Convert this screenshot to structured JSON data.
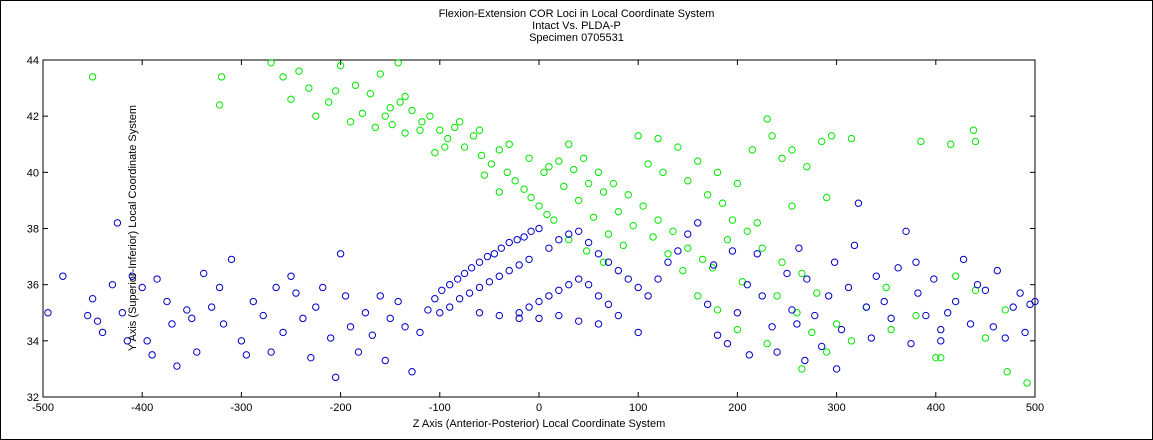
{
  "chart_data": {
    "type": "scatter",
    "title": "Flexion-Extension COR Loci in Local Coordinate System",
    "subtitle_lines": [
      "Intact Vs. PLDA-P",
      "Specimen 0705531"
    ],
    "xlabel": "Z Axis (Anterior-Posterior) Local Coordinate System",
    "ylabel": "Y Axis (Superior-Inferior) Local Coordinate System",
    "xlim": [
      -500,
      500
    ],
    "ylim": [
      32,
      44
    ],
    "xticks": [
      -500,
      -400,
      -300,
      -200,
      -100,
      0,
      100,
      200,
      300,
      400,
      500
    ],
    "yticks": [
      32,
      34,
      36,
      38,
      40,
      42,
      44
    ],
    "grid": false,
    "legend": "none",
    "marker": "open-circle",
    "series": [
      {
        "color": "#00e600",
        "values": [
          [
            -450,
            43.4
          ],
          [
            -320,
            43.4
          ],
          [
            -322,
            42.4
          ],
          [
            -270,
            43.9
          ],
          [
            -258,
            43.4
          ],
          [
            -250,
            42.6
          ],
          [
            -242,
            43.6
          ],
          [
            -232,
            43.0
          ],
          [
            -225,
            42.0
          ],
          [
            -212,
            42.5
          ],
          [
            -200,
            43.8
          ],
          [
            -185,
            43.1
          ],
          [
            -170,
            42.8
          ],
          [
            -160,
            43.5
          ],
          [
            -150,
            42.3
          ],
          [
            -142,
            43.9
          ],
          [
            -135,
            42.7
          ],
          [
            -205,
            42.9
          ],
          [
            -190,
            41.8
          ],
          [
            -178,
            42.1
          ],
          [
            -165,
            41.6
          ],
          [
            -155,
            42.0
          ],
          [
            -148,
            41.7
          ],
          [
            -140,
            42.5
          ],
          [
            -128,
            42.2
          ],
          [
            -118,
            41.8
          ],
          [
            -110,
            42.0
          ],
          [
            -100,
            41.5
          ],
          [
            -92,
            41.2
          ],
          [
            -85,
            41.6
          ],
          [
            -75,
            40.9
          ],
          [
            -66,
            41.3
          ],
          [
            -58,
            40.6
          ],
          [
            -48,
            40.3
          ],
          [
            -40,
            40.8
          ],
          [
            -32,
            40.0
          ],
          [
            -24,
            39.7
          ],
          [
            -15,
            39.4
          ],
          [
            -8,
            39.1
          ],
          [
            0,
            38.8
          ],
          [
            8,
            38.5
          ],
          [
            15,
            38.3
          ],
          [
            -80,
            41.8
          ],
          [
            -60,
            41.5
          ],
          [
            -30,
            41.0
          ],
          [
            -10,
            40.5
          ],
          [
            10,
            40.2
          ],
          [
            25,
            39.5
          ],
          [
            40,
            39.0
          ],
          [
            55,
            38.4
          ],
          [
            70,
            37.8
          ],
          [
            85,
            37.4
          ],
          [
            30,
            41.0
          ],
          [
            45,
            40.5
          ],
          [
            60,
            40.0
          ],
          [
            75,
            39.6
          ],
          [
            90,
            39.2
          ],
          [
            105,
            38.8
          ],
          [
            120,
            38.3
          ],
          [
            135,
            37.9
          ],
          [
            150,
            37.3
          ],
          [
            165,
            36.9
          ],
          [
            100,
            41.3
          ],
          [
            120,
            41.2
          ],
          [
            140,
            40.9
          ],
          [
            160,
            40.4
          ],
          [
            180,
            40.0
          ],
          [
            200,
            39.6
          ],
          [
            215,
            40.8
          ],
          [
            230,
            41.9
          ],
          [
            235,
            41.3
          ],
          [
            245,
            40.5
          ],
          [
            255,
            40.8
          ],
          [
            270,
            40.2
          ],
          [
            285,
            41.1
          ],
          [
            295,
            41.3
          ],
          [
            315,
            41.2
          ],
          [
            290,
            39.1
          ],
          [
            255,
            38.8
          ],
          [
            220,
            38.2
          ],
          [
            190,
            37.6
          ],
          [
            175,
            36.6
          ],
          [
            205,
            36.1
          ],
          [
            240,
            35.6
          ],
          [
            260,
            35.0
          ],
          [
            275,
            34.3
          ],
          [
            300,
            34.6
          ],
          [
            315,
            34.0
          ],
          [
            290,
            33.6
          ],
          [
            265,
            33.0
          ],
          [
            330,
            35.2
          ],
          [
            350,
            35.9
          ],
          [
            385,
            41.1
          ],
          [
            415,
            41.0
          ],
          [
            438,
            41.5
          ],
          [
            440,
            41.1
          ],
          [
            420,
            36.3
          ],
          [
            405,
            33.4
          ],
          [
            400,
            33.4
          ],
          [
            450,
            34.1
          ],
          [
            472,
            32.9
          ],
          [
            492,
            32.5
          ],
          [
            470,
            35.1
          ],
          [
            440,
            35.8
          ],
          [
            380,
            34.9
          ],
          [
            355,
            34.4
          ],
          [
            230,
            33.9
          ],
          [
            200,
            34.4
          ],
          [
            180,
            35.1
          ],
          [
            160,
            35.6
          ],
          [
            145,
            36.5
          ],
          [
            130,
            37.1
          ],
          [
            115,
            37.7
          ],
          [
            95,
            38.1
          ],
          [
            80,
            38.6
          ],
          [
            65,
            36.8
          ],
          [
            48,
            37.2
          ],
          [
            30,
            37.6
          ],
          [
            -40,
            39.3
          ],
          [
            -55,
            39.9
          ],
          [
            -95,
            40.9
          ],
          [
            -120,
            41.5
          ],
          [
            -135,
            41.4
          ],
          [
            -105,
            40.7
          ],
          [
            5,
            40.0
          ],
          [
            20,
            40.4
          ],
          [
            35,
            40.1
          ],
          [
            50,
            39.6
          ],
          [
            65,
            39.3
          ],
          [
            110,
            40.3
          ],
          [
            125,
            40.0
          ],
          [
            150,
            39.7
          ],
          [
            170,
            39.2
          ],
          [
            185,
            38.9
          ],
          [
            195,
            38.3
          ],
          [
            210,
            37.9
          ],
          [
            225,
            37.3
          ],
          [
            245,
            36.8
          ],
          [
            265,
            36.4
          ],
          [
            280,
            35.7
          ]
        ]
      },
      {
        "color": "#0000c8",
        "values": [
          [
            -495,
            35.0
          ],
          [
            -480,
            36.3
          ],
          [
            -455,
            34.9
          ],
          [
            -450,
            35.5
          ],
          [
            -445,
            34.7
          ],
          [
            -440,
            34.3
          ],
          [
            -430,
            36.0
          ],
          [
            -425,
            38.2
          ],
          [
            -420,
            35.0
          ],
          [
            -415,
            34.0
          ],
          [
            -410,
            36.3
          ],
          [
            -400,
            35.9
          ],
          [
            -395,
            34.0
          ],
          [
            -390,
            33.5
          ],
          [
            -385,
            36.2
          ],
          [
            -375,
            35.4
          ],
          [
            -370,
            34.6
          ],
          [
            -365,
            33.1
          ],
          [
            -355,
            35.1
          ],
          [
            -350,
            34.8
          ],
          [
            -345,
            33.6
          ],
          [
            -338,
            36.4
          ],
          [
            -330,
            35.2
          ],
          [
            -322,
            35.9
          ],
          [
            -318,
            34.6
          ],
          [
            -310,
            36.9
          ],
          [
            -300,
            34.0
          ],
          [
            -295,
            33.5
          ],
          [
            -288,
            35.4
          ],
          [
            -278,
            34.9
          ],
          [
            -270,
            33.6
          ],
          [
            -265,
            35.9
          ],
          [
            -258,
            34.3
          ],
          [
            -250,
            36.3
          ],
          [
            -245,
            35.7
          ],
          [
            -238,
            34.8
          ],
          [
            -230,
            33.4
          ],
          [
            -225,
            35.2
          ],
          [
            -218,
            35.9
          ],
          [
            -210,
            34.1
          ],
          [
            -205,
            32.7
          ],
          [
            -200,
            37.1
          ],
          [
            -195,
            35.6
          ],
          [
            -190,
            34.5
          ],
          [
            -182,
            33.6
          ],
          [
            -175,
            35.0
          ],
          [
            -168,
            34.2
          ],
          [
            -160,
            35.6
          ],
          [
            -155,
            33.3
          ],
          [
            -150,
            34.8
          ],
          [
            -142,
            35.4
          ],
          [
            -135,
            34.5
          ],
          [
            -128,
            32.9
          ],
          [
            -120,
            34.3
          ],
          [
            -112,
            35.1
          ],
          [
            -105,
            35.5
          ],
          [
            -98,
            35.8
          ],
          [
            -90,
            36.0
          ],
          [
            -82,
            36.2
          ],
          [
            -75,
            36.4
          ],
          [
            -68,
            36.6
          ],
          [
            -60,
            36.8
          ],
          [
            -52,
            37.0
          ],
          [
            -45,
            37.1
          ],
          [
            -38,
            37.3
          ],
          [
            -30,
            37.5
          ],
          [
            -22,
            37.6
          ],
          [
            -15,
            37.7
          ],
          [
            -8,
            37.9
          ],
          [
            0,
            38.0
          ],
          [
            -100,
            35.0
          ],
          [
            -90,
            35.2
          ],
          [
            -80,
            35.5
          ],
          [
            -70,
            35.7
          ],
          [
            -60,
            35.9
          ],
          [
            -50,
            36.1
          ],
          [
            -40,
            36.3
          ],
          [
            -30,
            36.5
          ],
          [
            -20,
            36.7
          ],
          [
            -10,
            36.9
          ],
          [
            10,
            37.3
          ],
          [
            20,
            37.6
          ],
          [
            30,
            37.8
          ],
          [
            40,
            37.9
          ],
          [
            50,
            37.5
          ],
          [
            60,
            37.1
          ],
          [
            70,
            36.8
          ],
          [
            80,
            36.5
          ],
          [
            90,
            36.2
          ],
          [
            100,
            35.9
          ],
          [
            -20,
            35.0
          ],
          [
            -10,
            35.2
          ],
          [
            0,
            35.4
          ],
          [
            10,
            35.6
          ],
          [
            20,
            35.8
          ],
          [
            30,
            36.0
          ],
          [
            40,
            36.2
          ],
          [
            50,
            36.0
          ],
          [
            60,
            35.6
          ],
          [
            70,
            35.3
          ],
          [
            -60,
            35.0
          ],
          [
            -40,
            34.9
          ],
          [
            -20,
            34.8
          ],
          [
            0,
            34.8
          ],
          [
            20,
            34.9
          ],
          [
            40,
            34.7
          ],
          [
            60,
            34.6
          ],
          [
            80,
            34.9
          ],
          [
            100,
            34.3
          ],
          [
            110,
            35.6
          ],
          [
            120,
            36.2
          ],
          [
            130,
            36.8
          ],
          [
            140,
            37.2
          ],
          [
            150,
            37.8
          ],
          [
            160,
            38.2
          ],
          [
            170,
            35.3
          ],
          [
            180,
            34.2
          ],
          [
            190,
            33.9
          ],
          [
            200,
            35.0
          ],
          [
            210,
            36.0
          ],
          [
            220,
            37.1
          ],
          [
            225,
            35.6
          ],
          [
            235,
            34.5
          ],
          [
            240,
            33.6
          ],
          [
            250,
            36.4
          ],
          [
            255,
            35.1
          ],
          [
            262,
            37.3
          ],
          [
            270,
            36.2
          ],
          [
            278,
            34.9
          ],
          [
            285,
            33.8
          ],
          [
            292,
            35.6
          ],
          [
            298,
            36.8
          ],
          [
            305,
            34.4
          ],
          [
            312,
            35.9
          ],
          [
            318,
            37.4
          ],
          [
            322,
            38.9
          ],
          [
            330,
            35.2
          ],
          [
            335,
            34.1
          ],
          [
            340,
            36.3
          ],
          [
            348,
            35.4
          ],
          [
            355,
            34.8
          ],
          [
            362,
            36.6
          ],
          [
            370,
            37.9
          ],
          [
            375,
            33.9
          ],
          [
            382,
            35.7
          ],
          [
            390,
            34.9
          ],
          [
            398,
            36.2
          ],
          [
            405,
            34.4
          ],
          [
            412,
            35.0
          ],
          [
            420,
            35.4
          ],
          [
            428,
            36.9
          ],
          [
            435,
            34.6
          ],
          [
            442,
            36.0
          ],
          [
            450,
            35.8
          ],
          [
            458,
            34.5
          ],
          [
            462,
            36.5
          ],
          [
            470,
            34.1
          ],
          [
            478,
            35.2
          ],
          [
            485,
            35.7
          ],
          [
            490,
            34.3
          ],
          [
            495,
            35.3
          ],
          [
            500,
            35.4
          ],
          [
            405,
            34.0
          ],
          [
            380,
            36.8
          ],
          [
            300,
            33.0
          ],
          [
            268,
            33.3
          ],
          [
            212,
            33.5
          ],
          [
            260,
            34.6
          ],
          [
            176,
            36.7
          ],
          [
            195,
            37.2
          ]
        ]
      }
    ]
  }
}
